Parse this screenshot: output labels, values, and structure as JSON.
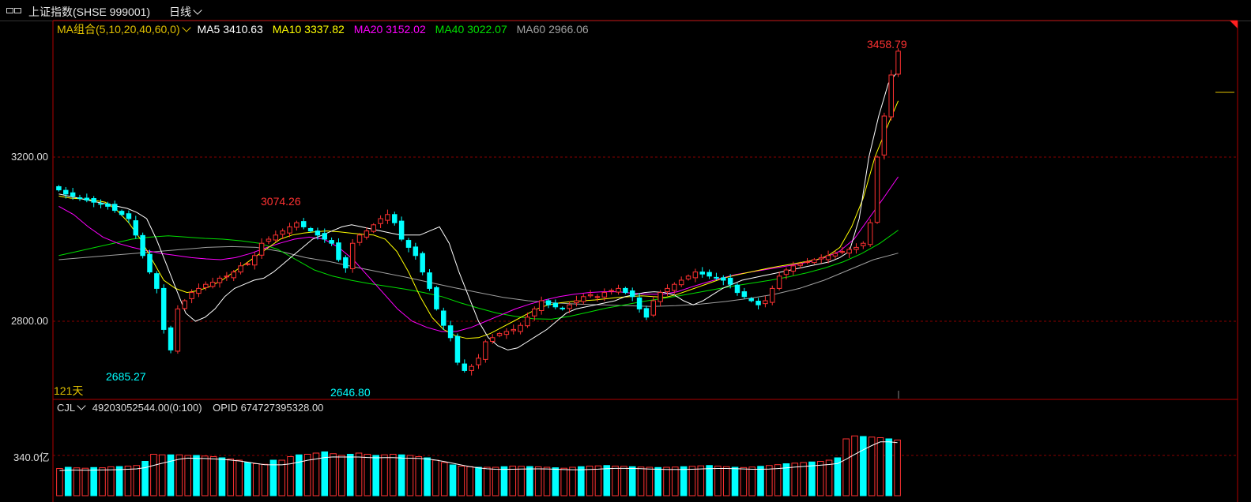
{
  "header": {
    "symbol": "上证指数(SHSE 999001)",
    "period": "日线"
  },
  "colors": {
    "up": "#ff3232",
    "down": "#00ffff",
    "ma5": "#ffffff",
    "ma10": "#ffff00",
    "ma20": "#ff00ff",
    "ma40": "#00e000",
    "ma60": "#a0a0a0",
    "axis": "#b00000",
    "grid": "#8a0000",
    "legend_title": "#e0c000"
  },
  "legend": {
    "ma_group": "MA组合(5,10,20,40,60,0)",
    "ma5": "MA5 3410.63",
    "ma10": "MA10 3337.82",
    "ma20": "MA20 3152.02",
    "ma40": "MA40 3022.07",
    "ma60": "MA60 2966.06"
  },
  "volume_legend": {
    "name": "CJL",
    "value": "49203052544.00(0:100)",
    "opid": "OPID 674727395328.00"
  },
  "axis_labels": {
    "y1": "3200.00",
    "y2": "2800.00",
    "vol": "340.0亿"
  },
  "annotations": {
    "days": "121天",
    "high1": "3074.26",
    "high2": "3458.79",
    "low1": "2685.27",
    "low2": "2646.80"
  },
  "chart_data": [
    {
      "type": "candlestick",
      "title": "上证指数(SHSE 999001) 日线",
      "ylim": [
        2620,
        3530
      ],
      "gridlines": [
        2800,
        3200
      ],
      "grid": true,
      "close": [
        3120,
        3110,
        3105,
        3100,
        3095,
        3090,
        3085,
        3080,
        3070,
        3060,
        3050,
        3010,
        2960,
        2920,
        2880,
        2780,
        2730,
        2830,
        2850,
        2870,
        2880,
        2890,
        2895,
        2905,
        2910,
        2920,
        2935,
        2940,
        2960,
        2990,
        3000,
        3010,
        3020,
        3030,
        3040,
        3030,
        3020,
        3010,
        3000,
        2990,
        2950,
        2930,
        2990,
        3010,
        3020,
        3035,
        3050,
        3060,
        3040,
        3000,
        2980,
        2960,
        2920,
        2880,
        2830,
        2790,
        2760,
        2700,
        2680,
        2690,
        2710,
        2750,
        2760,
        2770,
        2775,
        2780,
        2790,
        2810,
        2830,
        2850,
        2840,
        2835,
        2830,
        2840,
        2850,
        2860,
        2865,
        2860,
        2870,
        2875,
        2880,
        2870,
        2860,
        2830,
        2810,
        2850,
        2870,
        2880,
        2890,
        2900,
        2910,
        2920,
        2915,
        2910,
        2905,
        2900,
        2890,
        2870,
        2860,
        2850,
        2840,
        2850,
        2880,
        2910,
        2925,
        2935,
        2940,
        2945,
        2950,
        2955,
        2960,
        2965,
        2970,
        2975,
        2980,
        2990,
        3040,
        3200,
        3300,
        3400,
        3458
      ],
      "ma5": [
        3110,
        3105,
        3100,
        3095,
        3090,
        3085,
        3080,
        3075,
        3065,
        3050,
        3000,
        2940,
        2880,
        2820,
        2800,
        2810,
        2830,
        2860,
        2880,
        2890,
        2900,
        2905,
        2920,
        2940,
        2960,
        2980,
        3000,
        3010,
        3020,
        3030,
        3035,
        3030,
        3025,
        3020,
        3015,
        3010,
        3010,
        3010,
        3020,
        3030,
        2990,
        2920,
        2860,
        2800,
        2760,
        2740,
        2730,
        2735,
        2750,
        2765,
        2780,
        2800,
        2820,
        2830,
        2835,
        2840,
        2845,
        2850,
        2860,
        2865,
        2870,
        2872,
        2870,
        2865,
        2850,
        2840,
        2850,
        2865,
        2880,
        2890,
        2900,
        2905,
        2910,
        2915,
        2920,
        2925,
        2930,
        2935,
        2940,
        2945,
        2955,
        2970,
        3050,
        3200,
        3300,
        3380,
        3410
      ],
      "ma10": [
        3105,
        3100,
        3098,
        3095,
        3090,
        3070,
        3040,
        3000,
        2950,
        2900,
        2880,
        2870,
        2875,
        2885,
        2900,
        2920,
        2940,
        2960,
        2980,
        3000,
        3010,
        3015,
        3018,
        3020,
        3018,
        3015,
        3012,
        3010,
        3000,
        2970,
        2920,
        2860,
        2810,
        2780,
        2765,
        2758,
        2760,
        2770,
        2785,
        2800,
        2815,
        2830,
        2840,
        2845,
        2848,
        2850,
        2852,
        2855,
        2858,
        2860,
        2862,
        2860,
        2858,
        2865,
        2875,
        2885,
        2895,
        2905,
        2912,
        2918,
        2924,
        2930,
        2935,
        2940,
        2945,
        2950,
        2960,
        2980,
        3030,
        3100,
        3200,
        3270,
        3337
      ],
      "ma20": [
        3080,
        3060,
        3030,
        3005,
        2990,
        2980,
        2972,
        2965,
        2960,
        2955,
        2952,
        2950,
        2955,
        2965,
        2978,
        2990,
        3000,
        3005,
        3000,
        2980,
        2950,
        2910,
        2870,
        2830,
        2800,
        2785,
        2775,
        2775,
        2785,
        2800,
        2815,
        2830,
        2842,
        2852,
        2860,
        2866,
        2870,
        2872,
        2872,
        2868,
        2866,
        2866,
        2872,
        2884,
        2895,
        2905,
        2914,
        2920,
        2926,
        2932,
        2938,
        2945,
        2955,
        2970,
        3000,
        3050,
        3100,
        3152
      ],
      "ma40": [
        2960,
        2970,
        2980,
        2990,
        3000,
        3005,
        3008,
        3005,
        3002,
        3000,
        2996,
        2990,
        2975,
        2950,
        2925,
        2910,
        2900,
        2892,
        2885,
        2878,
        2870,
        2860,
        2845,
        2832,
        2820,
        2812,
        2806,
        2805,
        2812,
        2822,
        2832,
        2840,
        2848,
        2855,
        2862,
        2870,
        2878,
        2886,
        2893,
        2900,
        2908,
        2918,
        2930,
        2945,
        2965,
        2990,
        3022
      ],
      "ma60": [
        2950,
        2955,
        2960,
        2965,
        2970,
        2975,
        2980,
        2982,
        2980,
        2970,
        2955,
        2945,
        2932,
        2920,
        2908,
        2895,
        2882,
        2870,
        2858,
        2850,
        2845,
        2842,
        2840,
        2838,
        2836,
        2838,
        2842,
        2848,
        2856,
        2866,
        2880,
        2900,
        2925,
        2950,
        2966
      ]
    },
    {
      "type": "bar",
      "title": "CJL",
      "ylabel": "340.0亿",
      "note": "daily volume, relative units (340 = gridline)",
      "values": [
        230,
        240,
        235,
        232,
        238,
        236,
        244,
        246,
        250,
        255,
        290,
        350,
        345,
        345,
        345,
        340,
        340,
        335,
        330,
        320,
        310,
        300,
        280,
        270,
        265,
        300,
        300,
        330,
        345,
        350,
        360,
        370,
        355,
        340,
        350,
        360,
        350,
        340,
        345,
        350,
        345,
        340,
        330,
        320,
        300,
        280,
        260,
        250,
        245,
        240,
        240,
        240,
        245,
        250,
        248,
        246,
        244,
        240,
        236,
        232,
        240,
        245,
        250,
        252,
        255,
        250,
        248,
        245,
        242,
        240,
        238,
        240,
        242,
        245,
        248,
        252,
        255,
        250,
        245,
        240,
        238,
        242,
        248,
        255,
        262,
        270,
        275,
        280,
        285,
        290,
        300,
        320,
        480,
        505,
        500,
        495,
        490,
        480,
        470
      ]
    }
  ]
}
